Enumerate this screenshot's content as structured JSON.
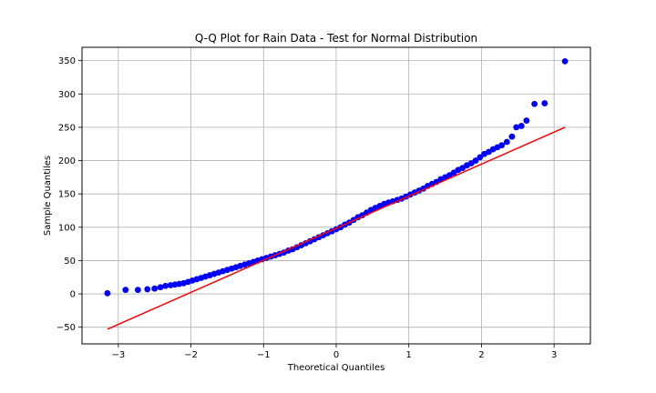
{
  "chart_data": {
    "type": "scatter",
    "title": "Q-Q Plot for Rain Data - Test for Normal Distribution",
    "xlabel": "Theoretical Quantiles",
    "ylabel": "Sample Quantiles",
    "xlim": [
      -3.5,
      3.5
    ],
    "ylim": [
      -75,
      370
    ],
    "xticks": [
      -3,
      -2,
      -1,
      0,
      1,
      2,
      3
    ],
    "xtick_labels": [
      "−3",
      "−2",
      "−1",
      "0",
      "1",
      "2",
      "3"
    ],
    "yticks": [
      -50,
      0,
      50,
      100,
      150,
      200,
      250,
      300,
      350
    ],
    "ytick_labels": [
      "−50",
      "0",
      "50",
      "100",
      "150",
      "200",
      "250",
      "300",
      "350"
    ],
    "grid": true,
    "colors": {
      "points": "#0000ff",
      "line": "#ff0000",
      "grid": "#b0b0b0"
    },
    "series": [
      {
        "kind": "scatter",
        "x": [
          -3.15,
          -2.9,
          -2.73,
          -2.6,
          -2.5,
          -2.42,
          -2.35,
          -2.28,
          -2.22,
          -2.16,
          -2.1,
          -2.04,
          -1.98,
          -1.92,
          -1.86,
          -1.8,
          -1.74,
          -1.68,
          -1.62,
          -1.56,
          -1.5,
          -1.44,
          -1.38,
          -1.32,
          -1.26,
          -1.2,
          -1.14,
          -1.08,
          -1.02,
          -0.96,
          -0.9,
          -0.84,
          -0.78,
          -0.72,
          -0.66,
          -0.6,
          -0.54,
          -0.48,
          -0.42,
          -0.36,
          -0.3,
          -0.24,
          -0.18,
          -0.12,
          -0.06,
          0.0,
          0.06,
          0.12,
          0.18,
          0.24,
          0.3,
          0.36,
          0.42,
          0.48,
          0.54,
          0.6,
          0.66,
          0.72,
          0.78,
          0.84,
          0.9,
          0.96,
          1.02,
          1.08,
          1.14,
          1.2,
          1.26,
          1.32,
          1.38,
          1.44,
          1.5,
          1.56,
          1.62,
          1.68,
          1.74,
          1.8,
          1.86,
          1.92,
          1.98,
          2.04,
          2.1,
          2.16,
          2.22,
          2.28,
          2.35,
          2.42,
          2.48,
          2.55,
          2.62,
          2.73,
          2.87,
          3.15
        ],
        "y": [
          1,
          6,
          6,
          7,
          8,
          10,
          12,
          13,
          14,
          15,
          16,
          18,
          20,
          22,
          24,
          26,
          28,
          30,
          32,
          34,
          36,
          38,
          40,
          42,
          44,
          46,
          48,
          50,
          52,
          54,
          56,
          58,
          60,
          62,
          65,
          67,
          70,
          73,
          76,
          79,
          82,
          85,
          88,
          91,
          94,
          97,
          100,
          104,
          107,
          111,
          115,
          118,
          122,
          126,
          129,
          132,
          135,
          137,
          139,
          141,
          143,
          146,
          149,
          152,
          155,
          158,
          162,
          165,
          168,
          172,
          175,
          178,
          182,
          186,
          189,
          193,
          196,
          200,
          205,
          210,
          213,
          217,
          220,
          223,
          228,
          236,
          250,
          252,
          260,
          285,
          286,
          349
        ]
      },
      {
        "kind": "line",
        "x": [
          -3.15,
          3.15
        ],
        "y": [
          -53,
          250
        ]
      }
    ]
  }
}
